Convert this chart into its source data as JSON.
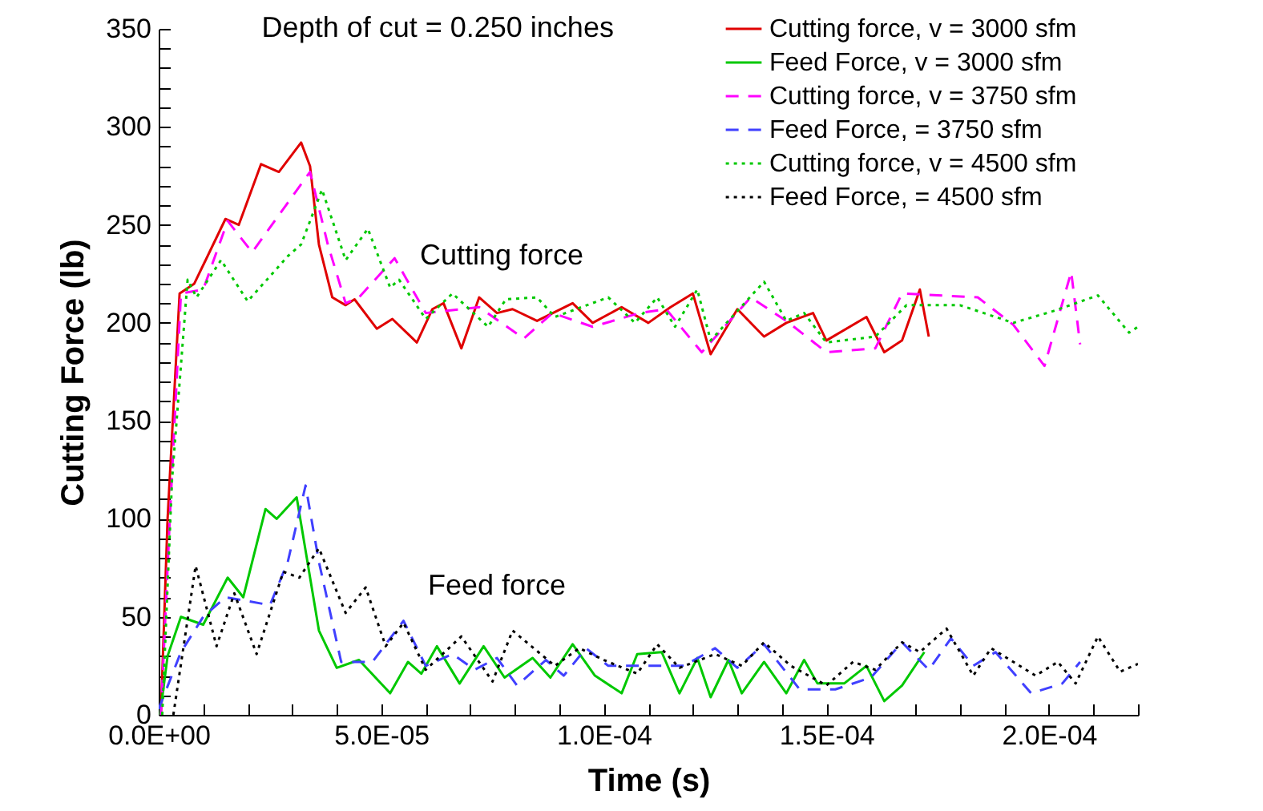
{
  "chart_data": {
    "type": "line",
    "title": null,
    "xlabel": "Time (s)",
    "ylabel": "Cutting Force (lb)",
    "annotations": [
      "Depth of cut = 0.250 inches",
      "Cutting force",
      "Feed force"
    ],
    "xlim": [
      0,
      0.00022
    ],
    "ylim": [
      0,
      350
    ],
    "xticks": [
      {
        "value": 0,
        "label": "0.0E+00"
      },
      {
        "value": 1e-05,
        "label": null
      },
      {
        "value": 2e-05,
        "label": null
      },
      {
        "value": 3e-05,
        "label": null
      },
      {
        "value": 4e-05,
        "label": null
      },
      {
        "value": 5e-05,
        "label": "5.0E-05"
      },
      {
        "value": 6e-05,
        "label": null
      },
      {
        "value": 7e-05,
        "label": null
      },
      {
        "value": 8e-05,
        "label": null
      },
      {
        "value": 9e-05,
        "label": null
      },
      {
        "value": 0.0001,
        "label": "1.0E-04"
      },
      {
        "value": 0.00011,
        "label": null
      },
      {
        "value": 0.00012,
        "label": null
      },
      {
        "value": 0.00013,
        "label": null
      },
      {
        "value": 0.00014,
        "label": null
      },
      {
        "value": 0.00015,
        "label": "1.5E-04"
      },
      {
        "value": 0.00016,
        "label": null
      },
      {
        "value": 0.00017,
        "label": null
      },
      {
        "value": 0.00018,
        "label": null
      },
      {
        "value": 0.00019,
        "label": null
      },
      {
        "value": 0.0002,
        "label": "2.0E-04"
      },
      {
        "value": 0.00021,
        "label": null
      },
      {
        "value": 0.00022,
        "label": null
      }
    ],
    "yticks": [
      0,
      {
        "value": 10,
        "label": null
      },
      {
        "value": 20,
        "label": null
      },
      {
        "value": 30,
        "label": null
      },
      {
        "value": 40,
        "label": null
      },
      50,
      {
        "value": 60,
        "label": null
      },
      {
        "value": 70,
        "label": null
      },
      {
        "value": 80,
        "label": null
      },
      {
        "value": 90,
        "label": null
      },
      100,
      {
        "value": 110,
        "label": null
      },
      {
        "value": 120,
        "label": null
      },
      {
        "value": 130,
        "label": null
      },
      {
        "value": 140,
        "label": null
      },
      150,
      {
        "value": 160,
        "label": null
      },
      {
        "value": 170,
        "label": null
      },
      {
        "value": 180,
        "label": null
      },
      {
        "value": 190,
        "label": null
      },
      200,
      {
        "value": 210,
        "label": null
      },
      {
        "value": 220,
        "label": null
      },
      {
        "value": 230,
        "label": null
      },
      {
        "value": 240,
        "label": null
      },
      250,
      {
        "value": 260,
        "label": null
      },
      {
        "value": 270,
        "label": null
      },
      {
        "value": 280,
        "label": null
      },
      {
        "value": 290,
        "label": null
      },
      300,
      {
        "value": 310,
        "label": null
      },
      {
        "value": 320,
        "label": null
      },
      {
        "value": 330,
        "label": null
      },
      {
        "value": 340,
        "label": null
      },
      350
    ],
    "legend": "top right",
    "grid": false,
    "series": [
      {
        "name": "Cutting force, v = 3000 sfm",
        "color": "#e00000",
        "line_style": "solid",
        "x": [
          5e-07,
          2e-06,
          4.7e-06,
          8e-06,
          1.5e-05,
          1.8e-05,
          2.3e-05,
          2.7e-05,
          3.2e-05,
          3.4e-05,
          3.6e-05,
          3.9e-05,
          4.2e-05,
          4.4e-05,
          4.9e-05,
          5.25e-05,
          5.8e-05,
          6.15e-05,
          6.4e-05,
          6.8e-05,
          7.2e-05,
          7.6e-05,
          7.95e-05,
          8.5e-05,
          9.3e-05,
          9.75e-05,
          0.000104,
          0.00011,
          0.000115,
          0.00012,
          0.000124,
          0.00013,
          0.000136,
          0.000141,
          0.000147,
          0.00015,
          0.000159,
          0.000163,
          0.000167,
          0.000171,
          0.000173
        ],
        "values": [
          0,
          100,
          215,
          220,
          253,
          250,
          281,
          277,
          292,
          280,
          240,
          213,
          209,
          212,
          197,
          202,
          190,
          207,
          210,
          187,
          213,
          205,
          207,
          201,
          210,
          200,
          208,
          200,
          208,
          215,
          184,
          207,
          193,
          200,
          205,
          191,
          203,
          185,
          191,
          217,
          193
        ]
      },
      {
        "name": "Feed Force, v = 3000 sfm",
        "color": "#00c800",
        "line_style": "solid",
        "x": [
          3e-07,
          2e-06,
          5e-06,
          1e-05,
          1.55e-05,
          1.9e-05,
          2.4e-05,
          2.65e-05,
          3.1e-05,
          3.6e-05,
          4e-05,
          4.5e-05,
          5.2e-05,
          5.6e-05,
          5.9e-05,
          6.25e-05,
          6.76e-05,
          7.3e-05,
          7.77e-05,
          8.4e-05,
          8.8e-05,
          9.3e-05,
          9.8e-05,
          0.000104,
          0.0001075,
          0.000113,
          0.000117,
          0.000121,
          0.000124,
          0.000128,
          0.000131,
          0.000136,
          0.000141,
          0.000145,
          0.000148,
          0.000154,
          0.000159,
          0.000163,
          0.000167,
          0.000172
        ],
        "values": [
          0,
          30,
          50,
          46,
          70,
          60,
          105,
          100,
          111,
          43,
          24,
          28,
          11,
          27,
          21,
          35,
          16,
          35,
          19,
          29,
          19,
          36,
          20,
          11,
          31,
          32,
          11,
          29,
          9,
          28,
          11,
          27,
          11,
          28,
          16,
          16,
          25,
          7,
          15,
          32
        ]
      },
      {
        "name": "Cutting force, v = 3750 sfm",
        "color": "#ff00ff",
        "line_style": "dashed",
        "x": [
          5e-07,
          2.5e-06,
          5e-06,
          1e-05,
          1.55e-05,
          2.1e-05,
          3.4e-05,
          3.8e-05,
          4.2e-05,
          4.5e-05,
          5.3e-05,
          6e-05,
          7.2e-05,
          8.2e-05,
          8.85e-05,
          9.75e-05,
          0.000108,
          0.000114,
          0.000122,
          0.000133,
          0.000141,
          0.00015,
          0.000161,
          0.000167,
          0.000184,
          0.000192,
          0.000199,
          0.000205,
          0.000207
        ],
        "values": [
          0,
          100,
          215,
          217,
          252,
          236,
          277,
          240,
          210,
          213,
          233,
          205,
          208,
          192,
          205,
          198,
          205,
          207,
          185,
          213,
          201,
          185,
          187,
          215,
          213,
          199,
          178,
          226,
          189
        ]
      },
      {
        "name": "Feed Force, = 3750 sfm",
        "color": "#4040ff",
        "line_style": "dashed",
        "x": [
          0,
          5e-06,
          1e-05,
          1.5e-05,
          2.5e-05,
          2.9e-05,
          3.3e-05,
          3.6e-05,
          4.1e-05,
          4.8e-05,
          5.5e-05,
          6e-05,
          6.6e-05,
          7.1e-05,
          7.6e-05,
          8.05e-05,
          8.7e-05,
          9.1e-05,
          9.6e-05,
          0.000101,
          0.0001075,
          0.000118,
          0.000125,
          0.00013,
          0.000136,
          0.000144,
          0.000152,
          0.00016,
          0.000167,
          0.000173,
          0.000178,
          0.000183,
          0.000188,
          0.000196,
          0.000203,
          0.000207
        ],
        "values": [
          3,
          32,
          50,
          60,
          56,
          78,
          117,
          78,
          27,
          27,
          48,
          25,
          31,
          23,
          29,
          15,
          28,
          20,
          34,
          25,
          25,
          25,
          34,
          24,
          36,
          13,
          13,
          19,
          37,
          23,
          39,
          25,
          32,
          11,
          16,
          27
        ]
      },
      {
        "name": "Cutting force, v = 4500 sfm",
        "color": "#00c800",
        "line_style": "dotted",
        "x": [
          8e-07,
          3e-06,
          6.5e-06,
          8.5e-06,
          1.4e-05,
          2e-05,
          2.9e-05,
          3.2e-05,
          3.67e-05,
          4.2e-05,
          4.7e-05,
          5.2e-05,
          5.4e-05,
          6e-05,
          6.6e-05,
          7.4e-05,
          7.8e-05,
          8.5e-05,
          8.9e-05,
          0.000101,
          0.000107,
          0.000112,
          0.000116,
          0.000121,
          0.000124,
          0.000136,
          0.000141,
          0.000145,
          0.00015,
          0.000161,
          0.000168,
          0.00018,
          0.000192,
          0.000201,
          0.000211,
          0.000218,
          0.00022
        ],
        "values": [
          0,
          120,
          222,
          213,
          232,
          211,
          234,
          240,
          268,
          232,
          248,
          218,
          222,
          202,
          215,
          198,
          212,
          213,
          203,
          213,
          200,
          213,
          198,
          217,
          191,
          221,
          201,
          205,
          190,
          193,
          209,
          209,
          200,
          206,
          214,
          195,
          198
        ]
      },
      {
        "name": "Feed Force, = 4500 sfm",
        "color": "#000000",
        "line_style": "dotted",
        "x": [
          3.3e-06,
          8.3e-06,
          1.3e-05,
          1.7e-05,
          2.2e-05,
          2.8e-05,
          3.16e-05,
          3.6e-05,
          4.2e-05,
          4.65e-05,
          5.1e-05,
          5.5e-05,
          6e-05,
          6.8e-05,
          7.5e-05,
          7.95e-05,
          8.9e-05,
          9.45e-05,
          0.0001,
          0.0001075,
          0.000112,
          0.000117,
          0.000125,
          0.000131,
          0.000136,
          0.000142,
          0.00015,
          0.000156,
          0.000161,
          0.000167,
          0.000171,
          0.000177,
          0.000183,
          0.000187,
          0.000197,
          0.000202,
          0.000206,
          0.000211,
          0.000216,
          0.00022
        ],
        "values": [
          0,
          76,
          35,
          62,
          31,
          73,
          70,
          85,
          52,
          65,
          35,
          47,
          23,
          40,
          17,
          43,
          25,
          34,
          28,
          21,
          36,
          24,
          31,
          25,
          37,
          25,
          15,
          27,
          23,
          37,
          32,
          44,
          20,
          34,
          20,
          27,
          16,
          40,
          22,
          26
        ]
      }
    ]
  }
}
